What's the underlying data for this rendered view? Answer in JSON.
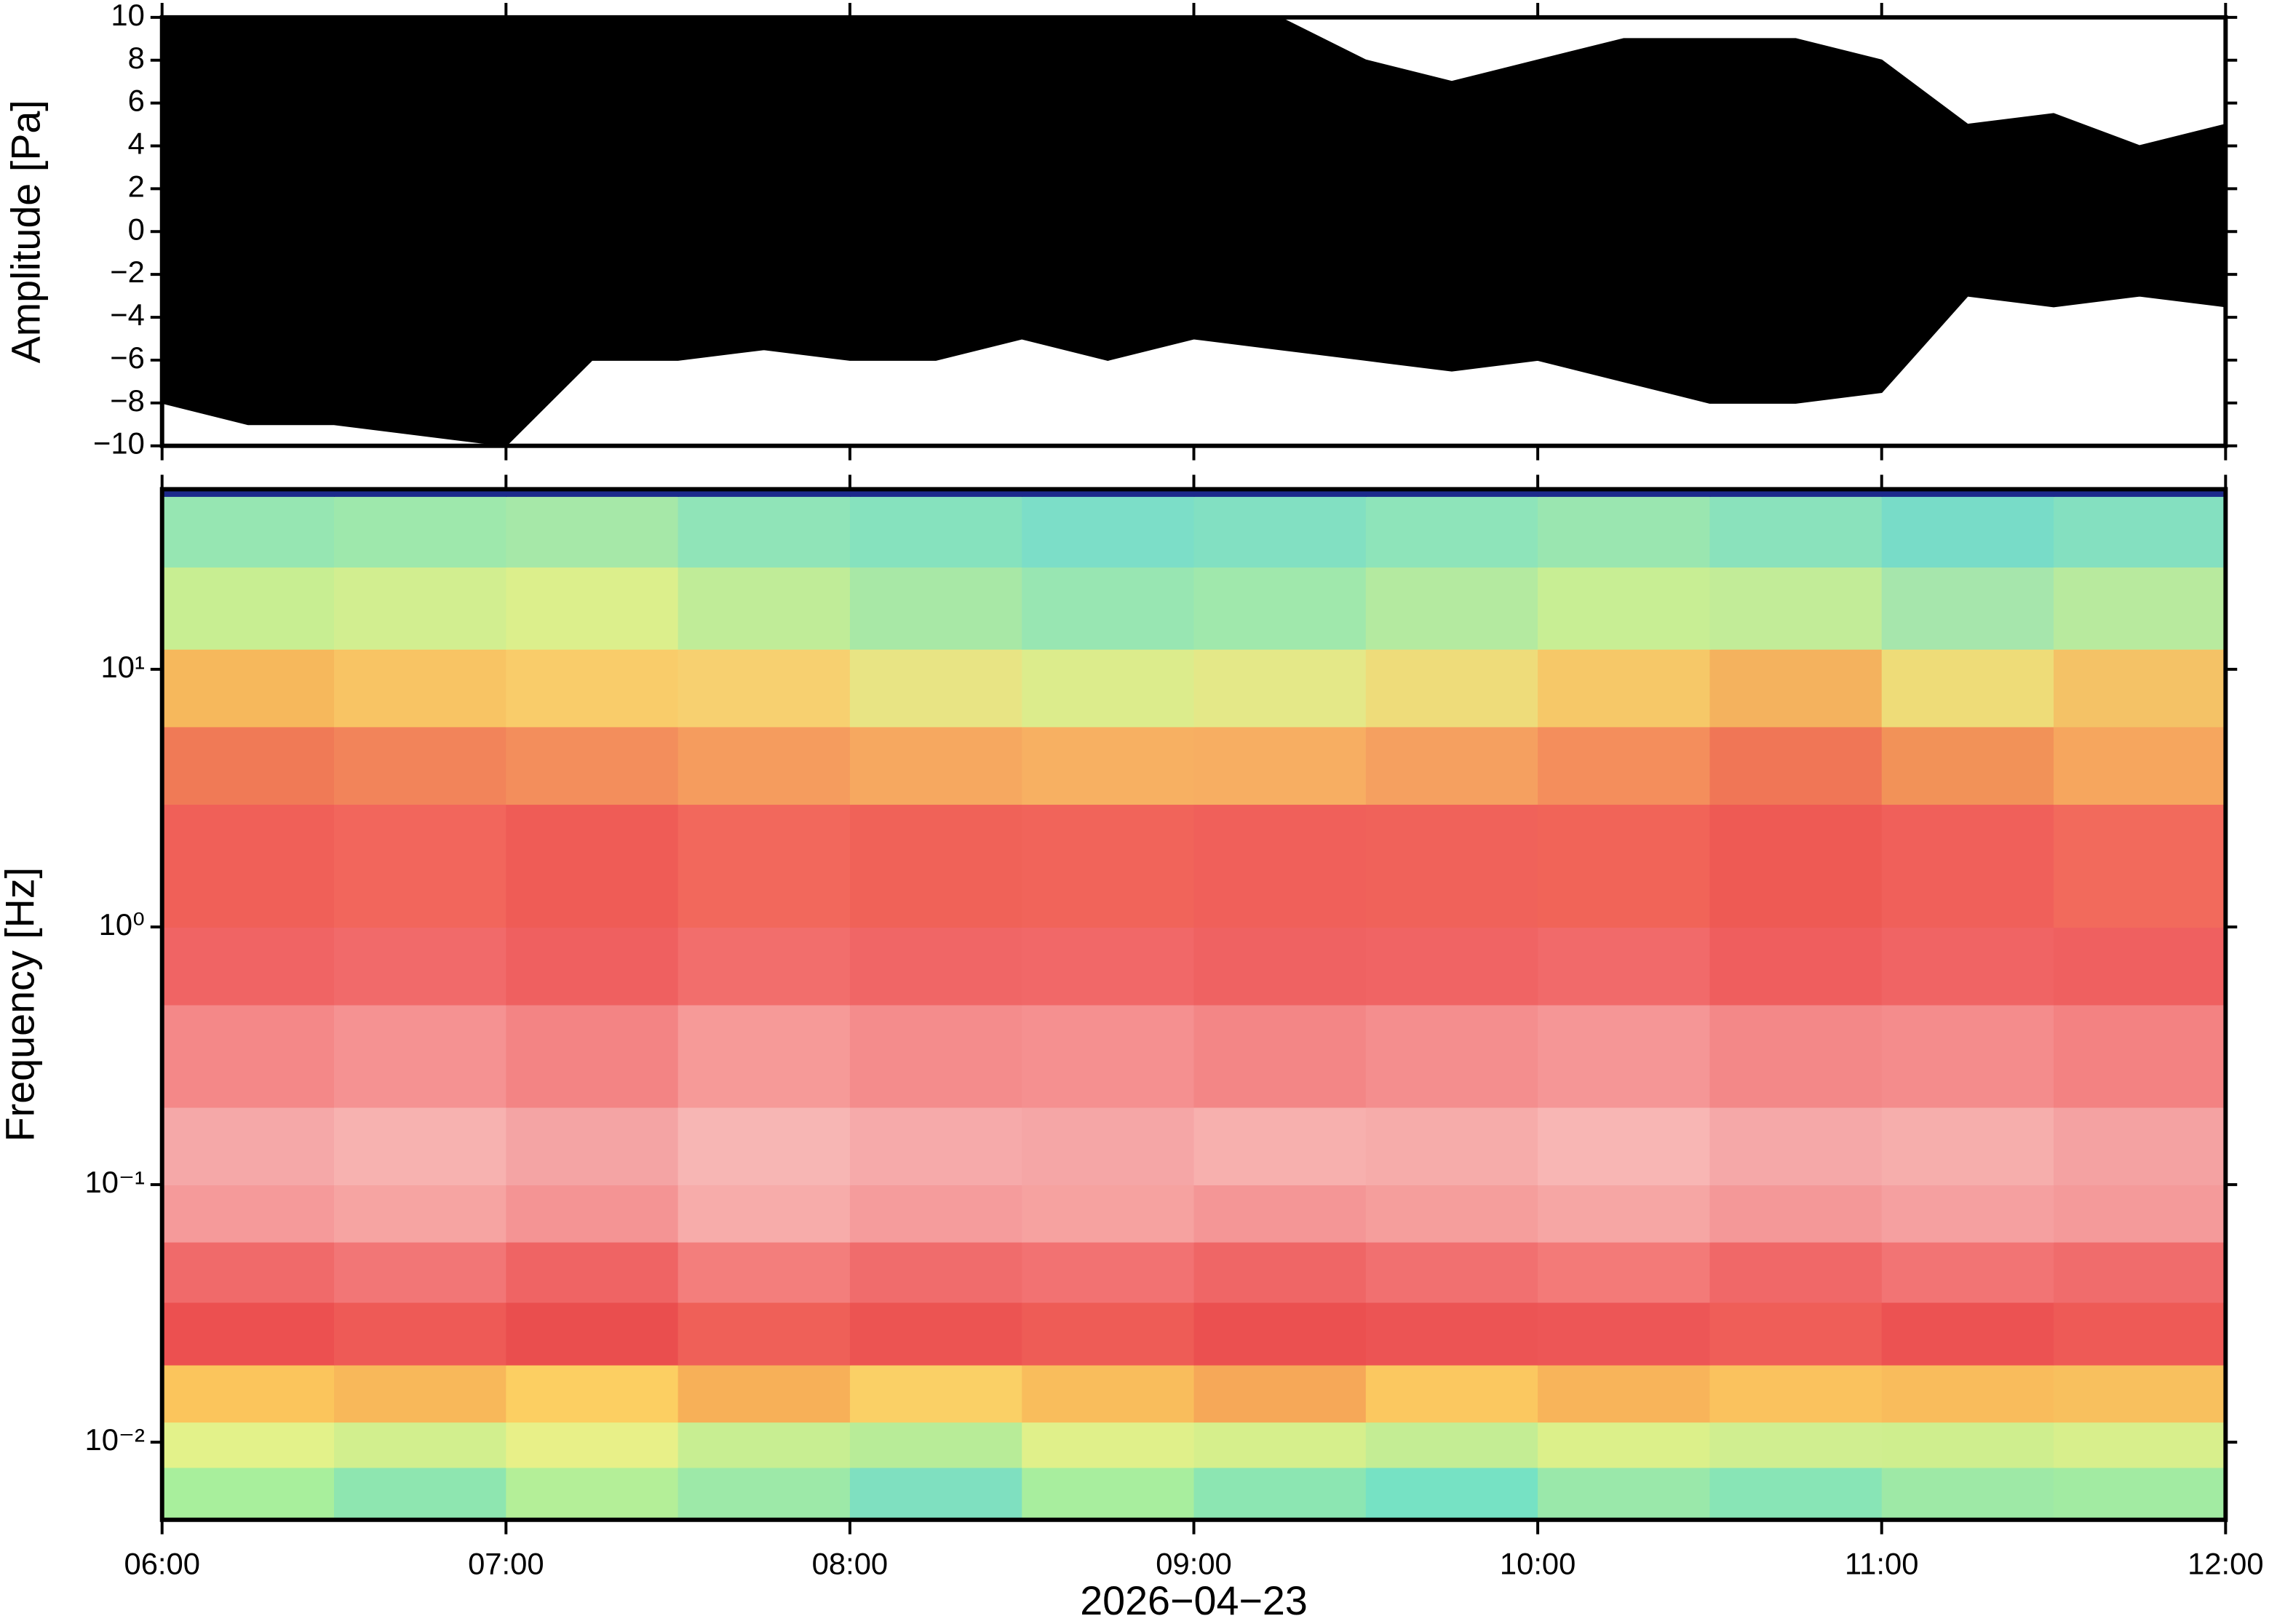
{
  "chart_data": [
    {
      "type": "area",
      "ylabel": "Amplitude [Pa]",
      "xlim": [
        "06:00",
        "12:00"
      ],
      "ylim": [
        -10,
        10
      ],
      "yticks": [
        {
          "value": -10,
          "label": "−10"
        },
        {
          "value": -8,
          "label": "−8"
        },
        {
          "value": -6,
          "label": "−6"
        },
        {
          "value": -4,
          "label": "−4"
        },
        {
          "value": -2,
          "label": "−2"
        },
        0,
        2,
        4,
        6,
        8,
        10
      ],
      "x": [
        "06:00",
        "06:15",
        "06:30",
        "06:45",
        "07:00",
        "07:15",
        "07:30",
        "07:45",
        "08:00",
        "08:15",
        "08:30",
        "08:45",
        "09:00",
        "09:15",
        "09:30",
        "09:45",
        "10:00",
        "10:15",
        "10:30",
        "10:45",
        "11:00",
        "11:15",
        "11:30",
        "11:45",
        "12:00"
      ],
      "series": [
        {
          "color": "#000000",
          "values": [
            10,
            10,
            10,
            10,
            10,
            10,
            10,
            10,
            10,
            10,
            10,
            10,
            10,
            10,
            8,
            7,
            8,
            9,
            9,
            9,
            8,
            5,
            5.5,
            4,
            5
          ]
        },
        {
          "color": "#000000",
          "values": [
            -8,
            -9,
            -9,
            -9.5,
            -10,
            -6,
            -6,
            -5.5,
            -6,
            -6,
            -5,
            -6,
            -5,
            -5.5,
            -6,
            -6.5,
            -6,
            -7,
            -8,
            -8,
            -7.5,
            -3,
            -3.5,
            -3,
            -3.5
          ]
        }
      ]
    },
    {
      "type": "heatmap",
      "ylabel": "Frequency [Hz]",
      "xlabel": "2026−04−23",
      "xlim": [
        "06:00",
        "12:00"
      ],
      "xticks": [
        "06:00",
        "07:00",
        "08:00",
        "09:00",
        "10:00",
        "11:00",
        "12:00"
      ],
      "ylim": [
        0.005,
        50
      ],
      "ylog": true,
      "yticks": [
        {
          "value": 0.01,
          "label": "10⁻²"
        },
        {
          "value": 0.1,
          "label": "10⁻¹"
        },
        {
          "value": 1,
          "label": "10⁰"
        },
        {
          "value": 10,
          "label": "10¹"
        }
      ],
      "x_edges": [
        "06:00",
        "06:30",
        "07:00",
        "07:30",
        "08:00",
        "08:30",
        "09:00",
        "09:30",
        "10:00",
        "10:30",
        "11:00",
        "11:30",
        "12:00"
      ],
      "y_edges": [
        0.005,
        0.008,
        0.012,
        0.02,
        0.035,
        0.06,
        0.1,
        0.2,
        0.5,
        1,
        3,
        6,
        12,
        25,
        47,
        50
      ],
      "colors": [
        [
          "#a8ef9c",
          "#8ee6b0",
          "#b4ef98",
          "#9de9a8",
          "#7fe0c0",
          "#a8ee9e",
          "#8ce6b2",
          "#76e2c4",
          "#9ae8aa",
          "#88e5b6",
          "#9ee9a6",
          "#a2eba2"
        ],
        [
          "#e3f28a",
          "#d2ef8e",
          "#e8f088",
          "#c8ee92",
          "#b8ec98",
          "#e0f08a",
          "#d6ef8c",
          "#c4ed94",
          "#dcf08a",
          "#d0ee90",
          "#cfee8e",
          "#d8ef8c"
        ],
        [
          "#fbc55c",
          "#f8b85a",
          "#fccf62",
          "#f7b058",
          "#fad066",
          "#f9bd5c",
          "#f6a858",
          "#fbc860",
          "#f8b45a",
          "#fac25e",
          "#f9bc5c",
          "#f8c05e"
        ],
        [
          "#ec5050",
          "#ee5a56",
          "#ea4e4e",
          "#ef6058",
          "#ec5452",
          "#ee5c56",
          "#eb5050",
          "#ec5454",
          "#ed5656",
          "#ef5e58",
          "#ec5252",
          "#ee5a56"
        ],
        [
          "#f06a6a",
          "#f27676",
          "#ef6464",
          "#f37e7c",
          "#f06c6c",
          "#f27272",
          "#ef6666",
          "#f17070",
          "#f37a78",
          "#f06868",
          "#f27474",
          "#f06c6c"
        ],
        [
          "#f59a9a",
          "#f6a4a2",
          "#f49494",
          "#f7acaa",
          "#f59c9c",
          "#f6a2a0",
          "#f49696",
          "#f59e9c",
          "#f6a6a4",
          "#f49898",
          "#f5a0a0",
          "#f49a9a"
        ],
        [
          "#f5a8a8",
          "#f7b2b0",
          "#f4a4a4",
          "#f7b6b4",
          "#f6aaaa",
          "#f5a6a6",
          "#f7b0ae",
          "#f6acaa",
          "#f8b6b4",
          "#f5a8a8",
          "#f6aeac",
          "#f4a2a2"
        ],
        [
          "#f48888",
          "#f59292",
          "#f38484",
          "#f69a98",
          "#f48c8c",
          "#f59090",
          "#f38686",
          "#f48e8e",
          "#f59696",
          "#f38888",
          "#f48c8c",
          "#f38282"
        ],
        [
          "#f06464",
          "#f16a6a",
          "#ef6060",
          "#f26e6c",
          "#f06666",
          "#f16868",
          "#ef6262",
          "#f06464",
          "#f16a6a",
          "#ef5e5e",
          "#f06464",
          "#ef6060"
        ],
        [
          "#f06058",
          "#f2665c",
          "#ef5c56",
          "#f2685c",
          "#f06258",
          "#f1645a",
          "#f0605a",
          "#f0625a",
          "#f16458",
          "#ee5a54",
          "#f0605a",
          "#f26a5c"
        ],
        [
          "#f07a56",
          "#f2845a",
          "#f38e5c",
          "#f59c5e",
          "#f6a860",
          "#f7b062",
          "#f7ae62",
          "#f5a060",
          "#f48e5c",
          "#f07656",
          "#f29258",
          "#f6a65e"
        ],
        [
          "#f6b85c",
          "#f8c464",
          "#f9cc6a",
          "#f7d070",
          "#e8e484",
          "#dcec8c",
          "#e4e888",
          "#eedc7a",
          "#f6c868",
          "#f4b25e",
          "#eedc78",
          "#f4c266"
        ],
        [
          "#c8ee92",
          "#d2ee90",
          "#dcef8c",
          "#c0ec98",
          "#a8e8a6",
          "#98e6b2",
          "#a0e8ac",
          "#b4eaa0",
          "#c8ee94",
          "#c2ec98",
          "#a6e6ac",
          "#b8ea9e"
        ],
        [
          "#96e6b2",
          "#9ee8ac",
          "#a6e8a8",
          "#90e4b8",
          "#86e2be",
          "#7cdec8",
          "#82e0c2",
          "#8ee4ba",
          "#9ae6b0",
          "#8ae2bc",
          "#78dcc8",
          "#84e0c0"
        ],
        [
          "#1c2a8c",
          "#1c2a8c",
          "#1c2a8c",
          "#1c2a8c",
          "#1c2a8c",
          "#1c2a8c",
          "#1c2a8c",
          "#1c2a8c",
          "#1c2a8c",
          "#1c2a8c",
          "#1c2a8c",
          "#1c2a8c"
        ]
      ]
    }
  ]
}
